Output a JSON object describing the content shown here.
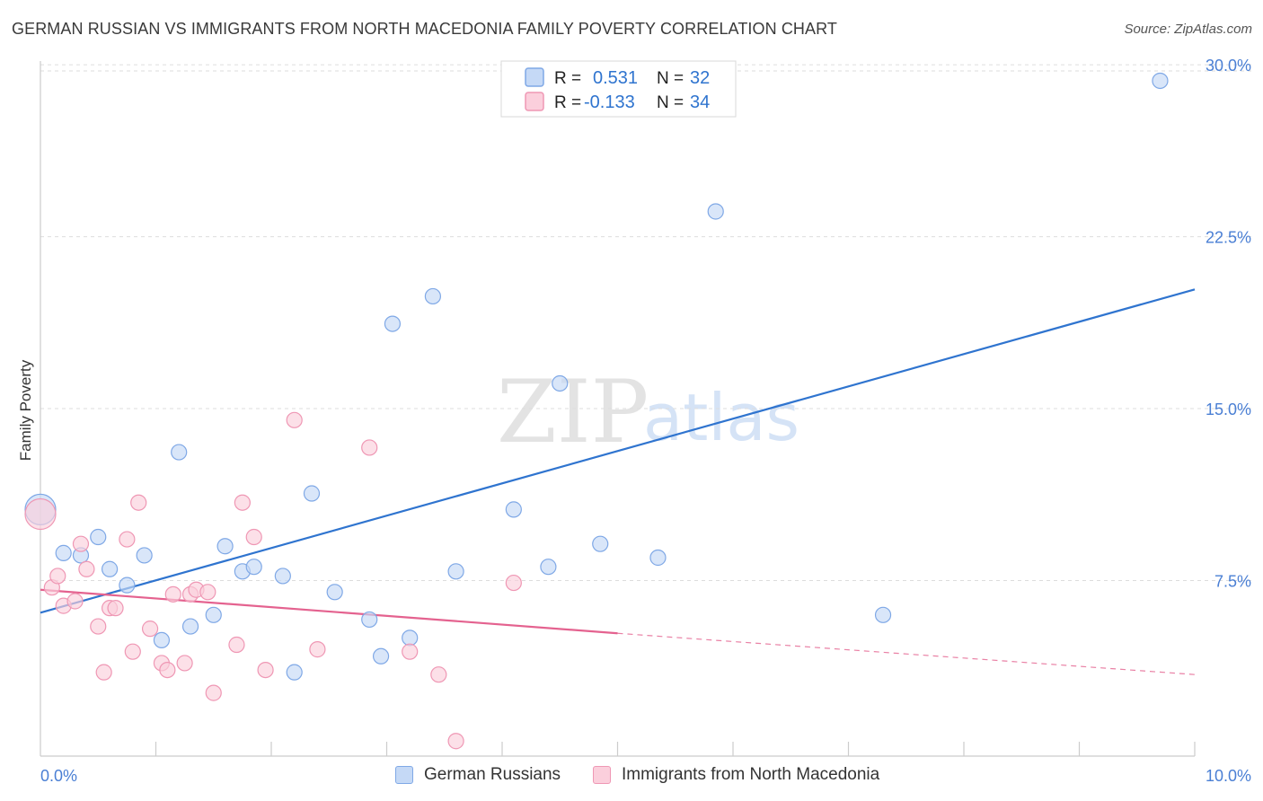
{
  "header": {
    "title": "GERMAN RUSSIAN VS IMMIGRANTS FROM NORTH MACEDONIA FAMILY POVERTY CORRELATION CHART",
    "source": "Source: ZipAtlas.com"
  },
  "watermark": {
    "zip": "ZIP",
    "atlas": "atlas"
  },
  "legend_top": {
    "rows": [
      {
        "r_label": "R =",
        "r_value": "0.531",
        "n_label": "N =",
        "n_value": "32"
      },
      {
        "r_label": "R =",
        "r_value": "-0.133",
        "n_label": "N =",
        "n_value": "34"
      }
    ]
  },
  "legend_bottom": {
    "series1": "German Russians",
    "series2": "Immigrants from North Macedonia"
  },
  "colors": {
    "blue_line": "#2f74cf",
    "blue_fill": "#c5d9f6",
    "blue_stroke": "#7fa8e6",
    "pink_line": "#e4628f",
    "pink_fill": "#fbcfdc",
    "pink_stroke": "#ef97b4",
    "tick_label": "#4a7fd4",
    "stat_value": "#2f74cf"
  },
  "chart_data": {
    "type": "scatter",
    "title": "GERMAN RUSSIAN VS IMMIGRANTS FROM NORTH MACEDONIA FAMILY POVERTY CORRELATION CHART",
    "xlabel": "",
    "ylabel": "Family Poverty",
    "xlim": [
      0,
      10
    ],
    "ylim": [
      0,
      31
    ],
    "x_tick_labels": [
      {
        "value": 0,
        "label": "0.0%"
      },
      {
        "value": 10,
        "label": "10.0%"
      }
    ],
    "y_tick_labels": [
      {
        "value": 7.5,
        "label": "7.5%"
      },
      {
        "value": 15,
        "label": "15.0%"
      },
      {
        "value": 22.5,
        "label": "22.5%"
      },
      {
        "value": 30,
        "label": "30.0%"
      }
    ],
    "x_minor_ticks": [
      1,
      2,
      3,
      4,
      5,
      6,
      7,
      8,
      9,
      10
    ],
    "series": [
      {
        "name": "German Russians",
        "color": "blue",
        "R": 0.531,
        "N": 32,
        "trend": {
          "x": [
            0,
            10
          ],
          "y": [
            6.1,
            20.2
          ]
        },
        "points": [
          [
            0.0,
            10.6,
            "large"
          ],
          [
            0.2,
            8.7
          ],
          [
            0.35,
            8.6
          ],
          [
            0.5,
            9.4
          ],
          [
            0.6,
            8.0
          ],
          [
            0.75,
            7.3
          ],
          [
            0.9,
            8.6
          ],
          [
            1.05,
            4.9
          ],
          [
            1.2,
            13.1
          ],
          [
            1.3,
            5.5
          ],
          [
            1.5,
            6.0
          ],
          [
            1.6,
            9.0
          ],
          [
            1.75,
            7.9
          ],
          [
            1.85,
            8.1
          ],
          [
            2.1,
            7.7
          ],
          [
            2.2,
            3.5
          ],
          [
            2.35,
            11.3
          ],
          [
            2.55,
            7.0
          ],
          [
            2.85,
            5.8
          ],
          [
            2.95,
            4.2
          ],
          [
            3.05,
            18.7
          ],
          [
            3.2,
            5.0
          ],
          [
            3.4,
            19.9
          ],
          [
            3.6,
            7.9
          ],
          [
            4.1,
            10.6
          ],
          [
            4.4,
            8.1
          ],
          [
            4.5,
            16.1
          ],
          [
            4.85,
            9.1
          ],
          [
            5.35,
            8.5
          ],
          [
            5.85,
            23.6
          ],
          [
            7.3,
            6.0
          ],
          [
            9.7,
            29.3
          ]
        ]
      },
      {
        "name": "Immigrants from North Macedonia",
        "color": "pink",
        "R": -0.133,
        "N": 34,
        "trend": {
          "x_solid": [
            0,
            5
          ],
          "y_solid": [
            7.1,
            5.2
          ],
          "x_dash": [
            5,
            10
          ],
          "y_dash": [
            5.2,
            3.4
          ]
        },
        "points": [
          [
            0.0,
            10.4,
            "large"
          ],
          [
            0.1,
            7.2
          ],
          [
            0.15,
            7.7
          ],
          [
            0.2,
            6.4
          ],
          [
            0.3,
            6.6
          ],
          [
            0.35,
            9.1
          ],
          [
            0.4,
            8.0
          ],
          [
            0.5,
            5.5
          ],
          [
            0.55,
            3.5
          ],
          [
            0.6,
            6.3
          ],
          [
            0.65,
            6.3
          ],
          [
            0.75,
            9.3
          ],
          [
            0.8,
            4.4
          ],
          [
            0.85,
            10.9
          ],
          [
            0.95,
            5.4
          ],
          [
            1.05,
            3.9
          ],
          [
            1.1,
            3.6
          ],
          [
            1.15,
            6.9
          ],
          [
            1.25,
            3.9
          ],
          [
            1.3,
            6.9
          ],
          [
            1.35,
            7.1
          ],
          [
            1.45,
            7.0
          ],
          [
            1.5,
            2.6
          ],
          [
            1.7,
            4.7
          ],
          [
            1.75,
            10.9
          ],
          [
            1.85,
            9.4
          ],
          [
            1.95,
            3.6
          ],
          [
            2.2,
            14.5
          ],
          [
            2.4,
            4.5
          ],
          [
            2.85,
            13.3
          ],
          [
            3.2,
            4.4
          ],
          [
            3.45,
            3.4
          ],
          [
            3.6,
            0.5
          ],
          [
            4.1,
            7.4
          ]
        ]
      }
    ]
  }
}
